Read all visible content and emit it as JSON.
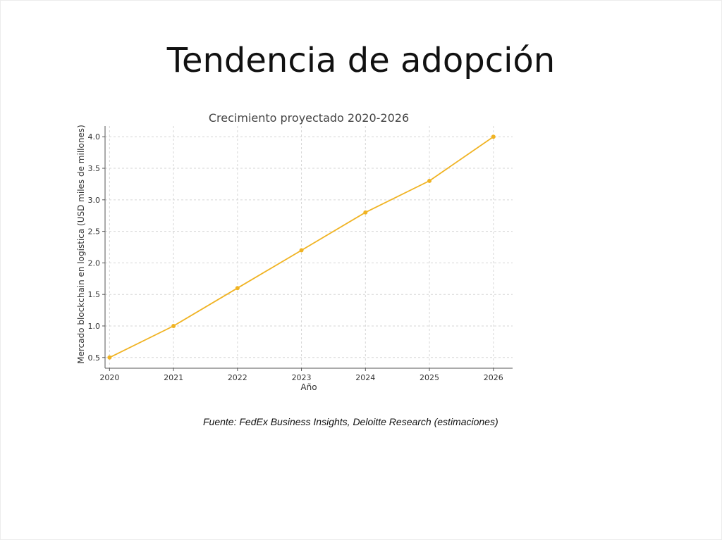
{
  "slide": {
    "title": "Tendencia de adopción",
    "source": "Fuente: FedEx Business Insights, Deloitte Research (estimaciones)"
  },
  "chart_data": {
    "type": "line",
    "title": "Crecimiento proyectado 2020-2026",
    "xlabel": "Año",
    "ylabel": "Mercado blockchain en logística (USD miles de millones)",
    "x": [
      2020,
      2021,
      2022,
      2023,
      2024,
      2025,
      2026
    ],
    "x_tick_labels": [
      "2020",
      "2021",
      "2022",
      "2023",
      "2024",
      "2025",
      "2026"
    ],
    "y_ticks": [
      0.5,
      1.0,
      1.5,
      2.0,
      2.5,
      3.0,
      3.5,
      4.0
    ],
    "y_tick_labels": [
      "0.5",
      "1.0",
      "1.5",
      "2.0",
      "2.5",
      "3.0",
      "3.5",
      "4.0"
    ],
    "series": [
      {
        "values": [
          0.5,
          1.0,
          1.6,
          2.2,
          2.8,
          3.3,
          4.0
        ],
        "color": "#f0b323",
        "marker": "circle"
      }
    ],
    "xlim": [
      2019.93,
      2026.3
    ],
    "ylim": [
      0.33,
      4.17
    ],
    "grid": true,
    "grid_style": "dashed",
    "legend": false
  }
}
